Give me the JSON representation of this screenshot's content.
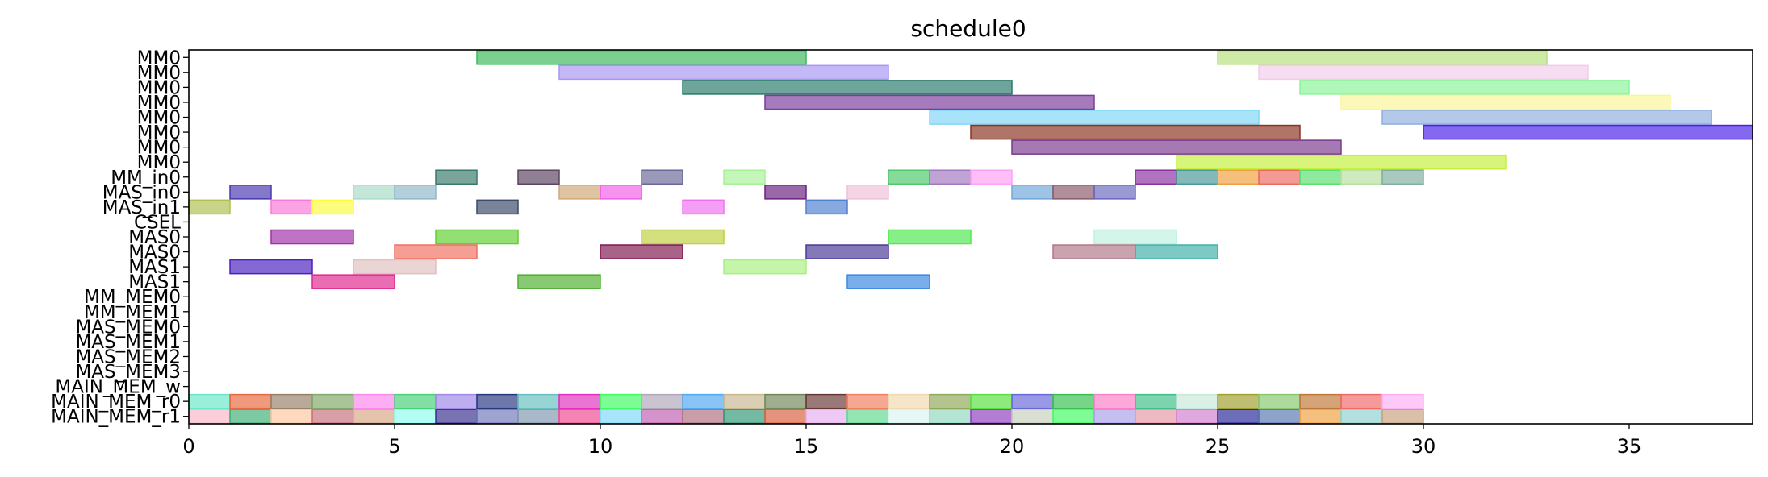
{
  "chart_data": {
    "type": "gantt",
    "title": "schedule0",
    "xlim": [
      0,
      38
    ],
    "x_ticks": [
      0,
      5,
      10,
      15,
      20,
      25,
      30,
      35
    ],
    "rows": [
      "MM0",
      "MM0",
      "MM0",
      "MM0",
      "MM0",
      "MM0",
      "MM0",
      "MM0",
      "MM_in0",
      "MAS_in0",
      "MAS_in1",
      "CSEL",
      "MAS0",
      "MAS0",
      "MAS1",
      "MAS1",
      "MM_MEM0",
      "MM_MEM1",
      "MAS_MEM0",
      "MAS_MEM1",
      "MAS_MEM2",
      "MAS_MEM3",
      "MAIN_MEM_w",
      "MAIN_MEM_r0",
      "MAIN_MEM_r1"
    ],
    "bars": [
      {
        "row": 0,
        "start": 7,
        "end": 15,
        "color": "#3cb95a"
      },
      {
        "row": 0,
        "start": 25,
        "end": 33,
        "color": "#b5e07e"
      },
      {
        "row": 1,
        "start": 9,
        "end": 17,
        "color": "#a996f2"
      },
      {
        "row": 1,
        "start": 26,
        "end": 34,
        "color": "#f2cdea"
      },
      {
        "row": 2,
        "start": 12,
        "end": 20,
        "color": "#2a7a6a"
      },
      {
        "row": 2,
        "start": 27,
        "end": 35,
        "color": "#8af59a"
      },
      {
        "row": 3,
        "start": 14,
        "end": 22,
        "color": "#7b3c9c"
      },
      {
        "row": 3,
        "start": 28,
        "end": 36,
        "color": "#fbf59a"
      },
      {
        "row": 4,
        "start": 18,
        "end": 26,
        "color": "#80d6f6"
      },
      {
        "row": 4,
        "start": 29,
        "end": 37,
        "color": "#90b0e0"
      },
      {
        "row": 5,
        "start": 19,
        "end": 27,
        "color": "#8a3420"
      },
      {
        "row": 5,
        "start": 30,
        "end": 38,
        "color": "#4a20e8"
      },
      {
        "row": 6,
        "start": 20,
        "end": 28,
        "color": "#7a3a8c"
      },
      {
        "row": 7,
        "start": 24,
        "end": 32,
        "color": "#c6f03c"
      },
      {
        "row": 8,
        "start": 6,
        "end": 7,
        "color": "#3a7a6a"
      },
      {
        "row": 8,
        "start": 8,
        "end": 9,
        "color": "#5a4560"
      },
      {
        "row": 8,
        "start": 11,
        "end": 12,
        "color": "#6a6898"
      },
      {
        "row": 8,
        "start": 13,
        "end": 14,
        "color": "#a8f098"
      },
      {
        "row": 8,
        "start": 17,
        "end": 18,
        "color": "#4cc86a"
      },
      {
        "row": 8,
        "start": 18,
        "end": 19,
        "color": "#a078c0"
      },
      {
        "row": 8,
        "start": 19,
        "end": 20,
        "color": "#fda0f6"
      },
      {
        "row": 8,
        "start": 23,
        "end": 24,
        "color": "#8a30a0"
      },
      {
        "row": 8,
        "start": 24,
        "end": 25,
        "color": "#4a9898"
      },
      {
        "row": 8,
        "start": 25,
        "end": 26,
        "color": "#f0a040"
      },
      {
        "row": 8,
        "start": 26,
        "end": 27,
        "color": "#ec6a60"
      },
      {
        "row": 8,
        "start": 27,
        "end": 28,
        "color": "#5ae070"
      },
      {
        "row": 8,
        "start": 28,
        "end": 29,
        "color": "#b8e0a0"
      },
      {
        "row": 8,
        "start": 29,
        "end": 30,
        "color": "#80b0a0"
      },
      {
        "row": 9,
        "start": 1,
        "end": 2,
        "color": "#4838b0"
      },
      {
        "row": 9,
        "start": 4,
        "end": 5,
        "color": "#a8dcc8"
      },
      {
        "row": 9,
        "start": 5,
        "end": 6,
        "color": "#90b8c8"
      },
      {
        "row": 9,
        "start": 9,
        "end": 10,
        "color": "#d0a878"
      },
      {
        "row": 9,
        "start": 10,
        "end": 11,
        "color": "#f060e8"
      },
      {
        "row": 9,
        "start": 14,
        "end": 15,
        "color": "#6a2080"
      },
      {
        "row": 9,
        "start": 16,
        "end": 17,
        "color": "#f0c0d8"
      },
      {
        "row": 9,
        "start": 20,
        "end": 21,
        "color": "#70a8d8"
      },
      {
        "row": 9,
        "start": 21,
        "end": 22,
        "color": "#8a5a6a"
      },
      {
        "row": 9,
        "start": 22,
        "end": 23,
        "color": "#6a68c0"
      },
      {
        "row": 10,
        "start": 0,
        "end": 1,
        "color": "#b0c050"
      },
      {
        "row": 10,
        "start": 2,
        "end": 3,
        "color": "#fa78d8"
      },
      {
        "row": 10,
        "start": 3,
        "end": 4,
        "color": "#fcfc40"
      },
      {
        "row": 10,
        "start": 7,
        "end": 8,
        "color": "#3a4a68"
      },
      {
        "row": 10,
        "start": 12,
        "end": 13,
        "color": "#f070f0"
      },
      {
        "row": 10,
        "start": 15,
        "end": 16,
        "color": "#5080d0"
      },
      {
        "row": 12,
        "start": 2,
        "end": 4,
        "color": "#a030a8"
      },
      {
        "row": 12,
        "start": 6,
        "end": 8,
        "color": "#60d030"
      },
      {
        "row": 12,
        "start": 11,
        "end": 13,
        "color": "#c0d040"
      },
      {
        "row": 12,
        "start": 17,
        "end": 19,
        "color": "#50e850"
      },
      {
        "row": 12,
        "start": 22,
        "end": 24,
        "color": "#c0f0e0"
      },
      {
        "row": 13,
        "start": 5,
        "end": 7,
        "color": "#f07060"
      },
      {
        "row": 13,
        "start": 10,
        "end": 12,
        "color": "#801850"
      },
      {
        "row": 13,
        "start": 15,
        "end": 17,
        "color": "#4a3898"
      },
      {
        "row": 13,
        "start": 21,
        "end": 23,
        "color": "#b07888"
      },
      {
        "row": 13,
        "start": 23,
        "end": 25,
        "color": "#40b0a8"
      },
      {
        "row": 14,
        "start": 1,
        "end": 3,
        "color": "#4a20c0"
      },
      {
        "row": 14,
        "start": 4,
        "end": 6,
        "color": "#e0c0c0"
      },
      {
        "row": 14,
        "start": 13,
        "end": 15,
        "color": "#a8f080"
      },
      {
        "row": 15,
        "start": 3,
        "end": 5,
        "color": "#e02890"
      },
      {
        "row": 15,
        "start": 8,
        "end": 10,
        "color": "#50b030"
      },
      {
        "row": 15,
        "start": 16,
        "end": 18,
        "color": "#3a88e0"
      },
      {
        "row": 23,
        "start": 0,
        "end": 1,
        "color": "#68e8c8"
      },
      {
        "row": 23,
        "start": 1,
        "end": 2,
        "color": "#e86840"
      },
      {
        "row": 23,
        "start": 2,
        "end": 3,
        "color": "#988068"
      },
      {
        "row": 23,
        "start": 3,
        "end": 4,
        "color": "#80a868"
      },
      {
        "row": 23,
        "start": 4,
        "end": 5,
        "color": "#fc88ec"
      },
      {
        "row": 23,
        "start": 5,
        "end": 6,
        "color": "#4ad078"
      },
      {
        "row": 23,
        "start": 6,
        "end": 7,
        "color": "#a088e8"
      },
      {
        "row": 23,
        "start": 7,
        "end": 8,
        "color": "#283880"
      },
      {
        "row": 23,
        "start": 8,
        "end": 9,
        "color": "#68c0c0"
      },
      {
        "row": 23,
        "start": 9,
        "end": 10,
        "color": "#e030c0"
      },
      {
        "row": 23,
        "start": 10,
        "end": 11,
        "color": "#40fc60"
      },
      {
        "row": 23,
        "start": 11,
        "end": 12,
        "color": "#b0a8b8"
      },
      {
        "row": 23,
        "start": 12,
        "end": 13,
        "color": "#50a8f0"
      },
      {
        "row": 23,
        "start": 13,
        "end": 14,
        "color": "#c8b890"
      },
      {
        "row": 23,
        "start": 14,
        "end": 15,
        "color": "#708858"
      },
      {
        "row": 23,
        "start": 15,
        "end": 16,
        "color": "#683838"
      },
      {
        "row": 23,
        "start": 16,
        "end": 17,
        "color": "#f08060"
      },
      {
        "row": 23,
        "start": 17,
        "end": 18,
        "color": "#f0d8b0"
      },
      {
        "row": 23,
        "start": 18,
        "end": 19,
        "color": "#90a858"
      },
      {
        "row": 23,
        "start": 19,
        "end": 20,
        "color": "#58e040"
      },
      {
        "row": 23,
        "start": 20,
        "end": 21,
        "color": "#6a68d8"
      },
      {
        "row": 23,
        "start": 21,
        "end": 22,
        "color": "#38c050"
      },
      {
        "row": 23,
        "start": 22,
        "end": 23,
        "color": "#fa80c8"
      },
      {
        "row": 23,
        "start": 23,
        "end": 24,
        "color": "#40c088"
      },
      {
        "row": 23,
        "start": 24,
        "end": 25,
        "color": "#c8e8d8"
      },
      {
        "row": 23,
        "start": 25,
        "end": 26,
        "color": "#a0a030"
      },
      {
        "row": 23,
        "start": 26,
        "end": 27,
        "color": "#88c870"
      },
      {
        "row": 23,
        "start": 27,
        "end": 28,
        "color": "#c07838"
      },
      {
        "row": 23,
        "start": 28,
        "end": 29,
        "color": "#f06868"
      },
      {
        "row": 23,
        "start": 29,
        "end": 30,
        "color": "#fcb0f4"
      },
      {
        "row": 24,
        "start": 0,
        "end": 1,
        "color": "#f8b8c8"
      },
      {
        "row": 24,
        "start": 1,
        "end": 2,
        "color": "#40b078"
      },
      {
        "row": 24,
        "start": 2,
        "end": 3,
        "color": "#fcc8a0"
      },
      {
        "row": 24,
        "start": 3,
        "end": 4,
        "color": "#c87080"
      },
      {
        "row": 24,
        "start": 4,
        "end": 5,
        "color": "#d8a888"
      },
      {
        "row": 24,
        "start": 5,
        "end": 6,
        "color": "#90fcf0"
      },
      {
        "row": 24,
        "start": 6,
        "end": 7,
        "color": "#3a3090"
      },
      {
        "row": 24,
        "start": 7,
        "end": 8,
        "color": "#7078b8"
      },
      {
        "row": 24,
        "start": 8,
        "end": 9,
        "color": "#8098b0"
      },
      {
        "row": 24,
        "start": 9,
        "end": 10,
        "color": "#f04890"
      },
      {
        "row": 24,
        "start": 10,
        "end": 11,
        "color": "#80d8f8"
      },
      {
        "row": 24,
        "start": 11,
        "end": 12,
        "color": "#c060b0"
      },
      {
        "row": 24,
        "start": 12,
        "end": 13,
        "color": "#b07080"
      },
      {
        "row": 24,
        "start": 13,
        "end": 14,
        "color": "#309878"
      },
      {
        "row": 24,
        "start": 14,
        "end": 15,
        "color": "#d86040"
      },
      {
        "row": 24,
        "start": 15,
        "end": 16,
        "color": "#e8b0f0"
      },
      {
        "row": 24,
        "start": 16,
        "end": 17,
        "color": "#60d890"
      },
      {
        "row": 24,
        "start": 17,
        "end": 18,
        "color": "#d8f4f0"
      },
      {
        "row": 24,
        "start": 18,
        "end": 19,
        "color": "#90d8c0"
      },
      {
        "row": 24,
        "start": 19,
        "end": 20,
        "color": "#9040c0"
      },
      {
        "row": 24,
        "start": 20,
        "end": 21,
        "color": "#c8d0c0"
      },
      {
        "row": 24,
        "start": 21,
        "end": 22,
        "color": "#40fc60"
      },
      {
        "row": 24,
        "start": 22,
        "end": 23,
        "color": "#a8a0e8"
      },
      {
        "row": 24,
        "start": 23,
        "end": 24,
        "color": "#e898a8"
      },
      {
        "row": 24,
        "start": 24,
        "end": 25,
        "color": "#d080d0"
      },
      {
        "row": 24,
        "start": 25,
        "end": 26,
        "color": "#2a2898"
      },
      {
        "row": 24,
        "start": 26,
        "end": 27,
        "color": "#5878b0"
      },
      {
        "row": 24,
        "start": 27,
        "end": 28,
        "color": "#f0a040"
      },
      {
        "row": 24,
        "start": 28,
        "end": 29,
        "color": "#90d0d0"
      },
      {
        "row": 24,
        "start": 29,
        "end": 30,
        "color": "#c8a080"
      }
    ]
  }
}
